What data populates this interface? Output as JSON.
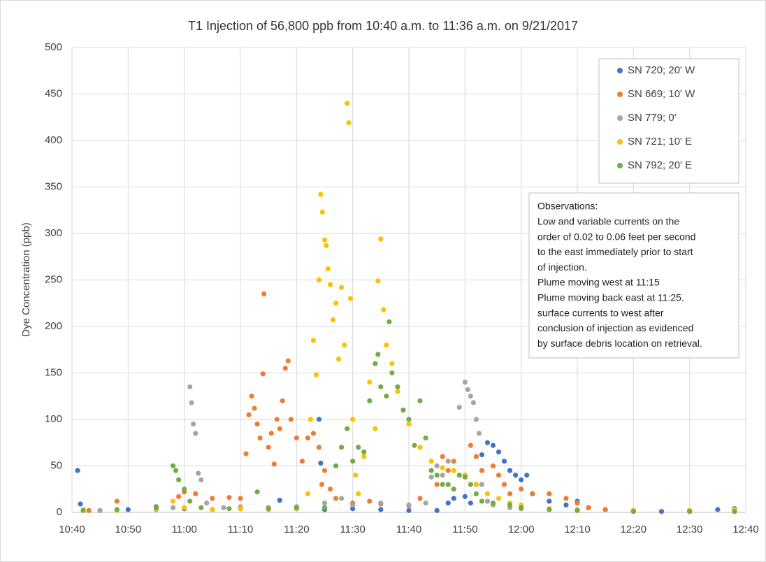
{
  "chart_data": {
    "type": "scatter",
    "title": "T1 Injection of 56,800 ppb from 10:40 a.m. to 11:36 a.m. on 9/21/2017",
    "y_label": "Dye Concentration (ppb)",
    "xlim": [
      640,
      760
    ],
    "ylim": [
      0,
      500
    ],
    "xticks": [
      {
        "value": 640,
        "label": "10:40"
      },
      {
        "value": 650,
        "label": "10:50"
      },
      {
        "value": 660,
        "label": "11:00"
      },
      {
        "value": 670,
        "label": "11:10"
      },
      {
        "value": 680,
        "label": "11:20"
      },
      {
        "value": 690,
        "label": "11:30"
      },
      {
        "value": 700,
        "label": "11:40"
      },
      {
        "value": 710,
        "label": "11:50"
      },
      {
        "value": 720,
        "label": "12:00"
      },
      {
        "value": 730,
        "label": "12:10"
      },
      {
        "value": 740,
        "label": "12:20"
      },
      {
        "value": 750,
        "label": "12:30"
      },
      {
        "value": 760,
        "label": "12:40"
      }
    ],
    "yticks": [
      0,
      50,
      100,
      150,
      200,
      250,
      300,
      350,
      400,
      450,
      500
    ],
    "grid": true,
    "legend": "upper right",
    "annotation": [
      "Observations:",
      "Low and variable currents on the",
      "order of 0.02 to 0.06 feet per second",
      "to the east immediately prior to start",
      "of injection.",
      "Plume moving west at 11:15",
      "Plume moving back east at 11:25.",
      "surface currents to west after",
      "conclusion of injection as evidenced",
      "by surface debris location on retrieval."
    ],
    "series": [
      {
        "name": "SN 720;  20' W",
        "color": "#4472c4",
        "x": [
          641,
          641.5,
          645,
          650,
          655,
          660,
          665,
          670,
          675,
          677,
          680,
          685,
          684,
          684.3,
          690,
          695,
          700,
          705,
          707,
          708,
          710,
          711,
          712,
          713,
          714,
          715,
          716,
          717,
          718,
          719,
          720,
          721,
          722,
          725,
          728,
          730,
          732,
          735,
          740,
          745,
          750,
          755,
          758
        ],
        "values": [
          45,
          9,
          2,
          3,
          6,
          4,
          3,
          4,
          5,
          13,
          4,
          3,
          100,
          53,
          4,
          3,
          2,
          2,
          10,
          15,
          17,
          10,
          30,
          62,
          75,
          72,
          65,
          55,
          45,
          40,
          35,
          40,
          20,
          12,
          8,
          12,
          5,
          3,
          2,
          1,
          1,
          3,
          4
        ]
      },
      {
        "name": "SN 669;  10' W",
        "color": "#ed7d31",
        "x": [
          643,
          648,
          655,
          659,
          660,
          662,
          665,
          668,
          670,
          671,
          671.5,
          672,
          672.5,
          673,
          673.5,
          674,
          674.2,
          675,
          675.5,
          676,
          676.5,
          677,
          677.5,
          678,
          678.5,
          679,
          680,
          681,
          682,
          683,
          684,
          684.5,
          685,
          686,
          687,
          690,
          693,
          695,
          700,
          702,
          705,
          706,
          707,
          708,
          710,
          711,
          712,
          713,
          715,
          716,
          717,
          718,
          720,
          722,
          725,
          728,
          730,
          732,
          735,
          740,
          750,
          758
        ],
        "values": [
          2,
          12,
          3,
          17,
          22,
          20,
          15,
          16,
          15,
          63,
          105,
          125,
          112,
          95,
          80,
          149,
          235,
          70,
          85,
          52,
          100,
          90,
          120,
          155,
          163,
          100,
          80,
          55,
          80,
          85,
          70,
          30,
          45,
          25,
          15,
          10,
          12,
          9,
          7,
          15,
          30,
          60,
          45,
          55,
          40,
          72,
          60,
          45,
          50,
          40,
          30,
          20,
          25,
          20,
          20,
          15,
          10,
          5,
          3,
          2,
          2,
          1
        ]
      },
      {
        "name": "SN 779;  0'",
        "color": "#a5a5a5",
        "x": [
          645,
          655,
          658,
          661,
          661.3,
          661.6,
          662,
          662.5,
          663,
          664,
          667,
          670,
          675,
          680,
          685,
          688,
          690,
          695,
          700,
          703,
          704,
          705,
          706,
          707,
          709,
          710,
          710.5,
          711,
          711.5,
          712,
          712.5,
          713,
          714,
          715,
          718,
          720,
          725,
          730,
          740,
          750
        ],
        "values": [
          2,
          3,
          5,
          135,
          118,
          95,
          85,
          42,
          35,
          10,
          5,
          6,
          5,
          6,
          10,
          15,
          8,
          10,
          8,
          10,
          38,
          50,
          40,
          55,
          113,
          140,
          132,
          125,
          118,
          100,
          85,
          30,
          12,
          8,
          5,
          4,
          3,
          2,
          2,
          1
        ]
      },
      {
        "name": "SN 721;  10' E",
        "color": "#ffc000",
        "x": [
          642,
          648,
          655,
          658,
          660,
          665,
          670,
          675,
          680,
          682,
          682.5,
          683,
          683.5,
          684,
          684.3,
          684.6,
          685,
          685.3,
          685.6,
          686,
          686.5,
          687,
          687.5,
          688,
          688.5,
          689,
          689.3,
          689.6,
          690,
          690.5,
          691,
          692,
          693,
          694,
          694.5,
          695,
          695.5,
          696,
          697,
          698,
          699,
          700,
          702,
          704,
          706,
          708,
          710,
          712,
          714,
          716,
          718,
          720,
          725,
          730,
          740,
          750,
          758
        ],
        "values": [
          3,
          2,
          4,
          12,
          5,
          3,
          4,
          3,
          4,
          20,
          100,
          185,
          148,
          250,
          342,
          323,
          293,
          287,
          262,
          245,
          207,
          225,
          165,
          242,
          180,
          440,
          419,
          230,
          100,
          40,
          20,
          60,
          140,
          90,
          249,
          294,
          218,
          180,
          160,
          130,
          110,
          95,
          70,
          55,
          48,
          45,
          40,
          30,
          20,
          15,
          10,
          8,
          4,
          3,
          2,
          2,
          3
        ]
      },
      {
        "name": "SN 792;  20' E",
        "color": "#70ad47",
        "x": [
          642,
          648,
          655,
          658,
          658.5,
          659,
          660,
          661,
          663,
          668,
          673,
          675,
          680,
          685,
          687,
          688,
          689,
          690,
          691,
          692,
          693,
          694,
          694.5,
          695,
          696,
          696.5,
          697,
          698,
          699,
          700,
          701,
          702,
          703,
          704,
          705,
          706,
          707,
          708,
          709,
          710,
          711,
          712,
          713,
          715,
          718,
          720,
          725,
          730,
          740,
          750,
          758
        ],
        "values": [
          2,
          3,
          5,
          50,
          45,
          35,
          25,
          12,
          5,
          4,
          22,
          4,
          5,
          5,
          50,
          70,
          90,
          55,
          70,
          65,
          120,
          160,
          170,
          135,
          125,
          205,
          150,
          135,
          110,
          100,
          72,
          120,
          80,
          45,
          40,
          30,
          30,
          25,
          40,
          38,
          30,
          20,
          12,
          10,
          8,
          5,
          3,
          2,
          1,
          1,
          1
        ]
      }
    ]
  }
}
